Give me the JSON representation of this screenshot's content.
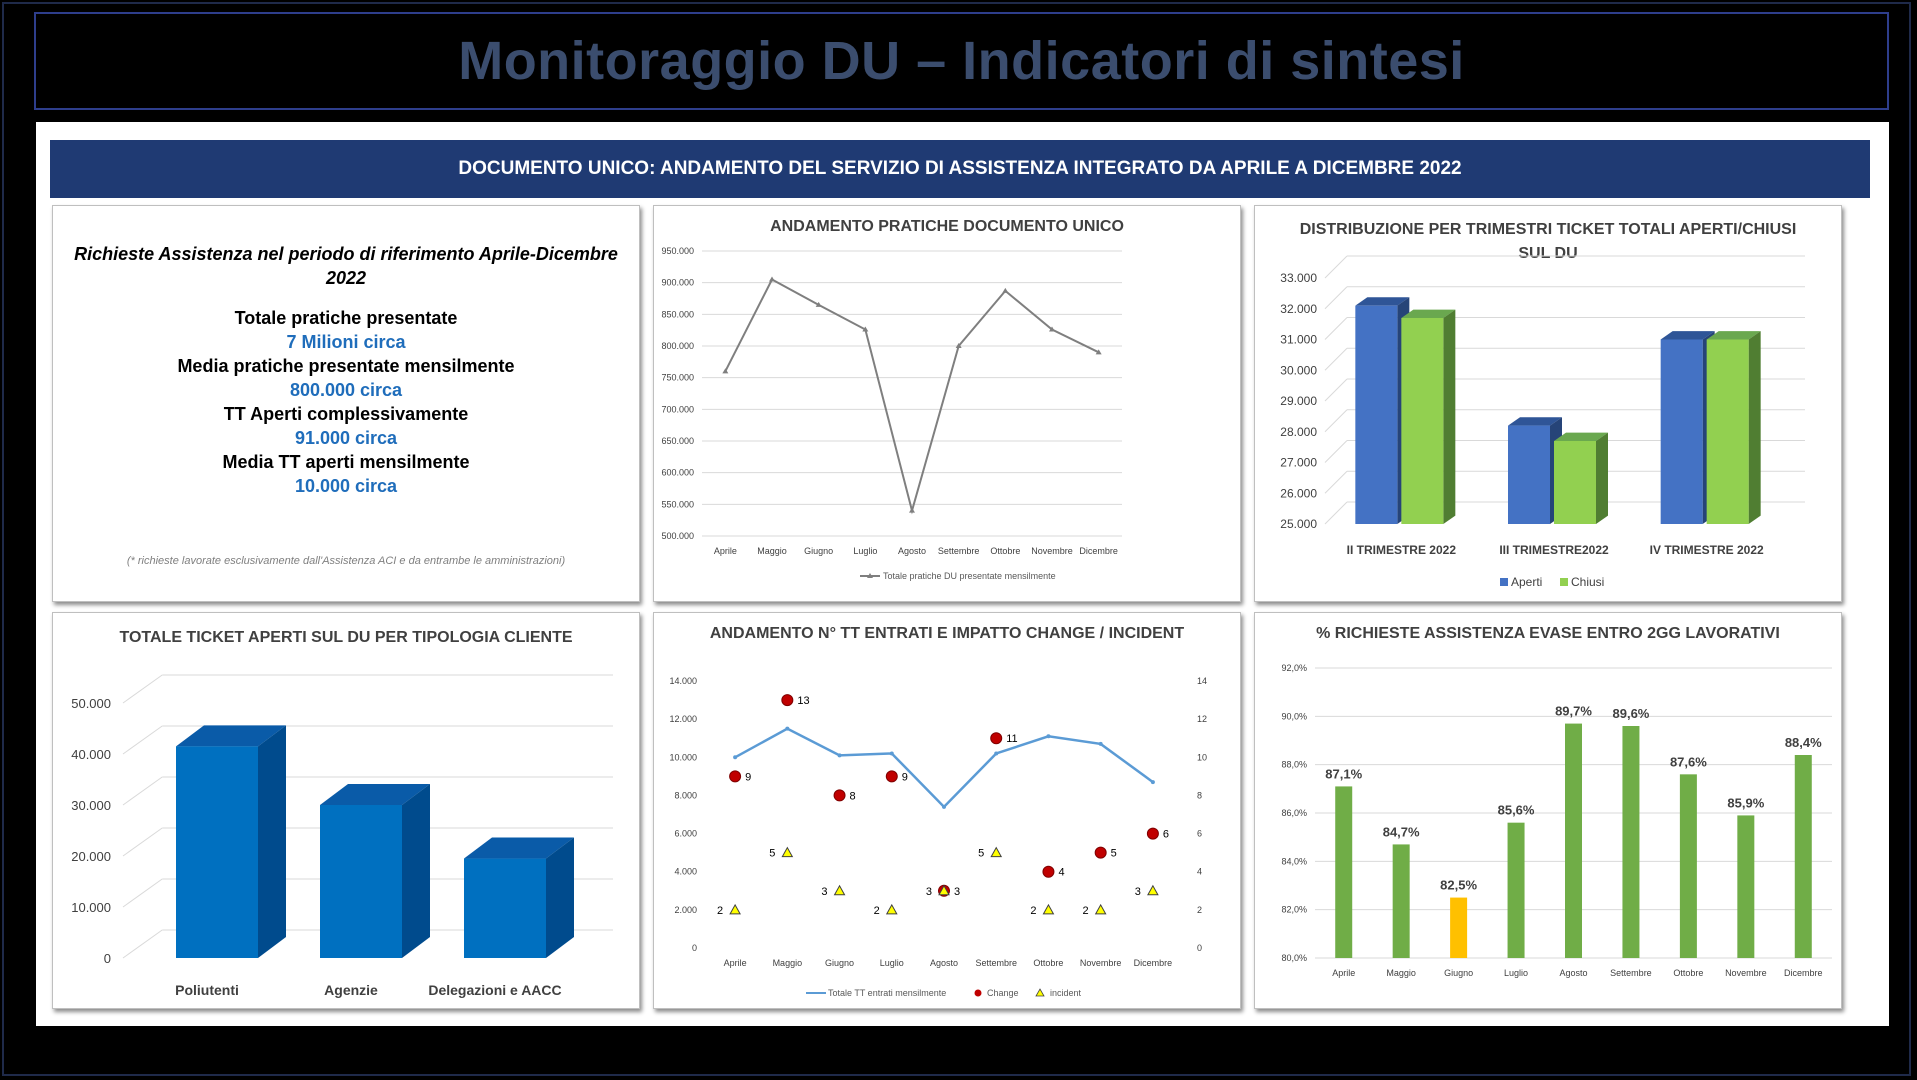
{
  "header": {
    "title": "Monitoraggio DU – Indicatori di sintesi"
  },
  "banner": {
    "text": "DOCUMENTO UNICO: ANDAMENTO DEL SERVIZIO DI ASSISTENZA INTEGRATO DA APRILE A DICEMBRE 2022"
  },
  "summary": {
    "heading": "Richieste Assistenza nel periodo di riferimento Aprile-Dicembre 2022",
    "items": [
      {
        "label": "Totale pratiche presentate",
        "value": "7 Milioni circa"
      },
      {
        "label": "Media pratiche presentate mensilmente",
        "value": "800.000 circa"
      },
      {
        "label": "TT Aperti complessivamente",
        "value": "91.000 circa"
      },
      {
        "label": "Media TT aperti mensilmente",
        "value": "10.000 circa"
      }
    ],
    "note": "(* richieste lavorate  esclusivamente dall'Assistenza ACI e da entrambe le amministrazioni)"
  },
  "colors": {
    "line_gray": "#7f7f7f",
    "blue": "#4472c4",
    "green": "#92d050",
    "dark_green": "#70ad47",
    "yellow": "#ffc000",
    "blue_3d": "#0070c0",
    "line_blue": "#5b9bd5",
    "red": "#c00000",
    "banner": "#1f3a73"
  },
  "chart_data": [
    {
      "id": "pratiche",
      "type": "line",
      "title": "ANDAMENTO PRATICHE DOCUMENTO UNICO",
      "categories": [
        "Aprile",
        "Maggio",
        "Giugno",
        "Luglio",
        "Agosto",
        "Settembre",
        "Ottobre",
        "Novembre",
        "Dicembre"
      ],
      "series": [
        {
          "name": "Totale pratiche DU presentate mensilmente",
          "values": [
            760000,
            905000,
            865000,
            826000,
            540000,
            800000,
            887000,
            826000,
            790000
          ]
        }
      ],
      "yticks": [
        "500.000",
        "550.000",
        "600.000",
        "650.000",
        "700.000",
        "750.000",
        "800.000",
        "850.000",
        "900.000",
        "950.000"
      ],
      "ylim": [
        500000,
        950000
      ],
      "legend": "bottom"
    },
    {
      "id": "trimestri",
      "type": "bar",
      "title": "DISTRIBUZIONE PER TRIMESTRI TICKET TOTALI APERTI/CHIUSI SUL DU",
      "categories": [
        "II TRIMESTRE 2022",
        "III TRIMESTRE2022",
        "IV TRIMESTRE 2022"
      ],
      "series": [
        {
          "name": "Aperti",
          "values": [
            32100,
            28200,
            31000
          ]
        },
        {
          "name": "Chiusi",
          "values": [
            31700,
            27700,
            31000
          ]
        }
      ],
      "yticks": [
        "25.000",
        "26.000",
        "27.000",
        "28.000",
        "29.000",
        "30.000",
        "31.000",
        "32.000",
        "33.000"
      ],
      "ylim": [
        25000,
        33000
      ],
      "legend": "bottom"
    },
    {
      "id": "tipologia",
      "type": "bar",
      "title": "TOTALE TICKET APERTI SUL DU PER TIPOLOGIA CLIENTE",
      "categories": [
        "Poliutenti",
        "Agenzie",
        "Delegazioni e AACC"
      ],
      "values": [
        41500,
        30000,
        19500
      ],
      "yticks": [
        "0",
        "10.000",
        "20.000",
        "30.000",
        "40.000",
        "50.000"
      ],
      "ylim": [
        0,
        50000
      ]
    },
    {
      "id": "tt",
      "type": "line",
      "title": "ANDAMENTO N° TT  ENTRATI E IMPATTO CHANGE / INCIDENT",
      "categories": [
        "Aprile",
        "Maggio",
        "Giugno",
        "Luglio",
        "Agosto",
        "Settembre",
        "Ottobre",
        "Novembre",
        "Dicembre"
      ],
      "series": [
        {
          "name": "Totale TT entrati mensilmente",
          "values": [
            10000,
            11500,
            10100,
            10200,
            7400,
            10200,
            11100,
            10700,
            8700
          ]
        },
        {
          "name": "Change",
          "values": [
            9,
            13,
            8,
            9,
            3,
            11,
            4,
            5,
            6
          ]
        },
        {
          "name": "incident",
          "values": [
            2,
            5,
            3,
            2,
            3,
            5,
            2,
            2,
            3
          ]
        }
      ],
      "yticks_left": [
        "0",
        "2.000",
        "4.000",
        "6.000",
        "8.000",
        "10.000",
        "12.000",
        "14.000"
      ],
      "yticks_right": [
        "0",
        "2",
        "4",
        "6",
        "8",
        "10",
        "12",
        "14"
      ],
      "ylim_left": [
        0,
        14000
      ],
      "ylim_right": [
        0,
        14
      ],
      "legend": "bottom"
    },
    {
      "id": "evase",
      "type": "bar",
      "title": "% RICHIESTE ASSISTENZA EVASE ENTRO 2GG LAVORATIVI",
      "categories": [
        "Aprile",
        "Maggio",
        "Giugno",
        "Luglio",
        "Agosto",
        "Settembre",
        "Ottobre",
        "Novembre",
        "Dicembre"
      ],
      "values": [
        87.1,
        84.7,
        82.5,
        85.6,
        89.7,
        89.6,
        87.6,
        85.9,
        88.4
      ],
      "labels": [
        "87,1%",
        "84,7%",
        "82,5%",
        "85,6%",
        "89,7%",
        "89,6%",
        "87,6%",
        "85,9%",
        "88,4%"
      ],
      "highlight": "Giugno",
      "yticks": [
        "80,0%",
        "82,0%",
        "84,0%",
        "86,0%",
        "88,0%",
        "90,0%",
        "92,0%"
      ],
      "ylim": [
        80,
        92
      ]
    }
  ]
}
